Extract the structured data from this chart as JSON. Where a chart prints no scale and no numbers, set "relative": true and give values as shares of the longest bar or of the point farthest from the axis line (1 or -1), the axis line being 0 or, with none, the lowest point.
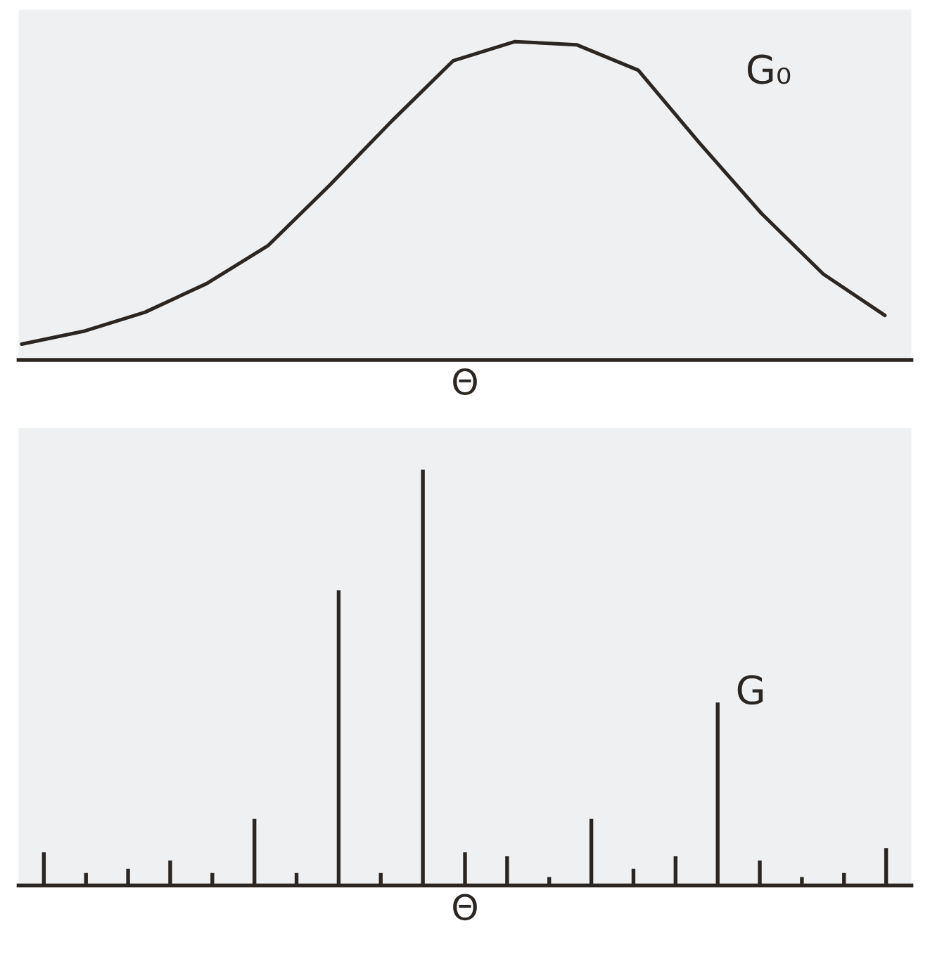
{
  "chart_data": [
    {
      "type": "line",
      "relative": true,
      "xlabel": "Θ",
      "marker": "none",
      "line_style": "solid",
      "categories": [
        null,
        null,
        null,
        null,
        null,
        null,
        null,
        null,
        null,
        null,
        null,
        null,
        null,
        null,
        null
      ],
      "series": [
        {
          "name": "G₀",
          "color": "#2b2622",
          "values": [
            0.05,
            0.09,
            0.15,
            0.24,
            0.36,
            0.55,
            0.75,
            0.94,
            1.0,
            0.99,
            0.91,
            0.68,
            0.46,
            0.27,
            0.14
          ]
        }
      ]
    },
    {
      "type": "bar",
      "relative": true,
      "xlabel": "Θ",
      "categories": [
        null,
        null,
        null,
        null,
        null,
        null,
        null,
        null,
        null,
        null,
        null,
        null,
        null,
        null,
        null,
        null,
        null,
        null,
        null,
        null,
        null
      ],
      "series": [
        {
          "name": "G",
          "color": "#2b2622",
          "values": [
            0.08,
            0.03,
            0.04,
            0.06,
            0.03,
            0.16,
            0.03,
            0.71,
            0.03,
            1.0,
            0.08,
            0.07,
            0.02,
            0.16,
            0.04,
            0.07,
            0.44,
            0.06,
            0.02,
            0.03,
            0.09
          ]
        }
      ]
    }
  ]
}
